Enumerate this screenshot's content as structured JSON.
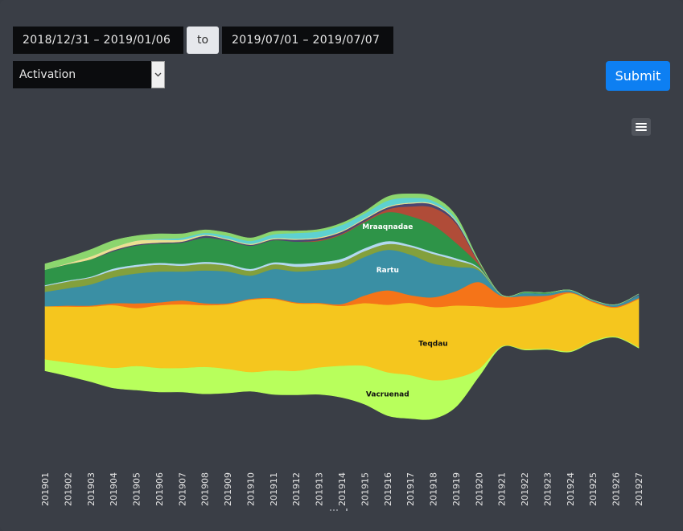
{
  "controls": {
    "start_range": "2018/12/31 – 2019/01/06",
    "to_label": "to",
    "end_range": "2019/07/01 – 2019/07/07",
    "metric_selected": "Activation",
    "submit_label": "Submit"
  },
  "chart_data": {
    "type": "area",
    "subtype": "streamgraph",
    "categories": [
      "201901",
      "201902",
      "201903",
      "201904",
      "201905",
      "201906",
      "201907",
      "201908",
      "201909",
      "201910",
      "201911",
      "201912",
      "201913",
      "201914",
      "201915",
      "201916",
      "201917",
      "201918",
      "201919",
      "201920",
      "201921",
      "201922",
      "201923",
      "201924",
      "201925",
      "201926",
      "201927"
    ],
    "series": [
      {
        "name": "Vacruenad",
        "color": "#b8ff5c",
        "label_color": "#111111",
        "label": "Vacruenad",
        "values": [
          12,
          14,
          17,
          21,
          25,
          25,
          25,
          28,
          25,
          20,
          25,
          25,
          28,
          33,
          40,
          45,
          45,
          40,
          30,
          8,
          1,
          1,
          1,
          1,
          1,
          1,
          1
        ]
      },
      {
        "name": "Teqdau",
        "color": "#f5c61e",
        "label_color": "#111111",
        "label": "Teqdau",
        "values": [
          55,
          58,
          61,
          65,
          60,
          65,
          66,
          64,
          67,
          75,
          74,
          70,
          66,
          62,
          65,
          70,
          75,
          76,
          75,
          65,
          40,
          45,
          50,
          60,
          40,
          30,
          50
        ]
      },
      {
        "name": "",
        "color": "#f57418",
        "values": [
          0,
          1,
          1,
          2,
          5,
          3,
          4,
          2,
          1,
          1,
          1,
          1,
          1,
          2,
          8,
          15,
          8,
          10,
          15,
          25,
          12,
          10,
          5,
          1,
          1,
          1,
          1
        ]
      },
      {
        "name": "Rartu",
        "color": "#3a8fa4",
        "label_color": "#ffffff",
        "label": "Rartu",
        "values": [
          15,
          18,
          22,
          27,
          31,
          32,
          30,
          34,
          33,
          24,
          30,
          32,
          34,
          38,
          40,
          42,
          42,
          35,
          25,
          12,
          1,
          3,
          2,
          2,
          1,
          2,
          3
        ]
      },
      {
        "name": "",
        "color": "#83a03c",
        "values": [
          6,
          7,
          7,
          7,
          7,
          7,
          6,
          7,
          6,
          5,
          5,
          5,
          5,
          6,
          6,
          6,
          8,
          10,
          7,
          2,
          0,
          0,
          0,
          0,
          0,
          0,
          0
        ]
      },
      {
        "name": "",
        "color": "#b3d9f0",
        "values": [
          1,
          1,
          1,
          2,
          2,
          2,
          2,
          2,
          2,
          2,
          2,
          3,
          3,
          3,
          3,
          3,
          2,
          2,
          2,
          1,
          0,
          0,
          0,
          0,
          0,
          0,
          0
        ]
      },
      {
        "name": "Mraaqnadae",
        "color": "#2e9448",
        "label_color": "#ffffff",
        "label": "Mraaqnadae",
        "values": [
          16,
          17,
          18,
          18,
          20,
          20,
          22,
          25,
          24,
          24,
          23,
          23,
          22,
          25,
          27,
          30,
          30,
          28,
          16,
          3,
          0,
          1,
          1,
          0,
          0,
          0,
          0
        ]
      },
      {
        "name": "",
        "color": "#b04c38",
        "values": [
          0,
          0,
          0,
          0,
          0,
          0,
          0,
          0,
          0,
          0,
          0,
          0,
          1,
          1,
          1,
          3,
          10,
          18,
          20,
          2,
          0,
          0,
          0,
          0,
          0,
          0,
          0
        ]
      },
      {
        "name": "",
        "color": "#4a4672",
        "values": [
          0,
          0,
          0,
          1,
          1,
          1,
          1,
          2,
          1,
          1,
          1,
          2,
          2,
          2,
          2,
          2,
          3,
          3,
          2,
          1,
          0,
          0,
          0,
          0,
          0,
          0,
          1
        ]
      },
      {
        "name": "",
        "color": "#ece092",
        "values": [
          0,
          1,
          3,
          3,
          4,
          3,
          2,
          1,
          1,
          1,
          1,
          1,
          1,
          1,
          1,
          1,
          1,
          1,
          1,
          0,
          0,
          0,
          0,
          0,
          0,
          0,
          0
        ]
      },
      {
        "name": "",
        "color": "#5ed1d1",
        "values": [
          0,
          0,
          0,
          0,
          0,
          1,
          2,
          2,
          3,
          3,
          4,
          6,
          6,
          6,
          5,
          6,
          5,
          3,
          2,
          0,
          0,
          0,
          0,
          0,
          0,
          0,
          0
        ]
      },
      {
        "name": "",
        "color": "#8cd66e",
        "values": [
          6,
          6,
          7,
          7,
          5,
          5,
          4,
          3,
          3,
          3,
          3,
          2,
          2,
          2,
          2,
          4,
          4,
          4,
          3,
          1,
          0,
          0,
          0,
          0,
          0,
          0,
          0
        ]
      }
    ],
    "xlabel": "",
    "ylabel": "",
    "grid": false,
    "legend": "none"
  }
}
